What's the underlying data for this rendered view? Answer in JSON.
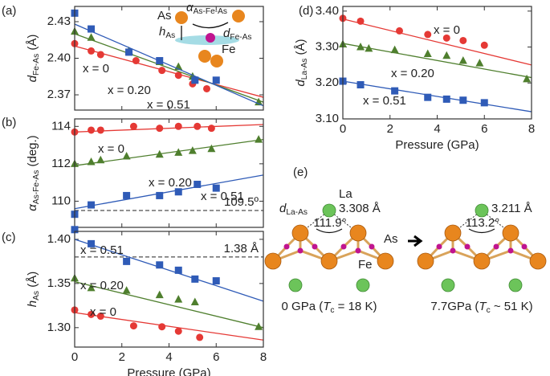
{
  "chart_data": [
    {
      "type": "scatter",
      "panel": "(a)",
      "ylabel": {
        "symbol": "d",
        "sub": "Fe-As",
        "unit": " (Å)"
      },
      "xlim": [
        0,
        8
      ],
      "xticks": [
        0,
        2,
        4,
        6,
        8
      ],
      "ylim": [
        2.3575,
        2.4425
      ],
      "yticks": [
        2.37,
        {
          "value": 2.4,
          "label": "2.40"
        },
        2.43
      ],
      "series": [
        {
          "name": "x = 0",
          "color": "#e53935",
          "marker": "circle",
          "x": [
            0,
            0.7,
            1.1,
            2.6,
            3.7,
            4.4,
            5.0,
            5.6
          ],
          "values": [
            2.412,
            2.406,
            2.403,
            2.398,
            2.39,
            2.386,
            2.379,
            2.375
          ],
          "fit": {
            "x": [
              0,
              8
            ],
            "values": [
              2.41,
              2.368
            ]
          }
        },
        {
          "name": "x = 0.20",
          "color": "#4f7f2e",
          "marker": "triangle",
          "x": [
            0,
            0.7,
            2.3,
            3.6,
            4.4,
            5.0,
            7.8
          ],
          "values": [
            2.422,
            2.417,
            2.406,
            2.397,
            2.393,
            2.385,
            2.364
          ],
          "fit": {
            "x": [
              0,
              8
            ],
            "values": [
              2.42,
              2.364
            ]
          }
        },
        {
          "name": "x = 0.51",
          "color": "#2f5bb7",
          "marker": "square",
          "x": [
            0,
            0.7,
            2.3,
            3.6,
            5.1,
            6.0
          ],
          "values": [
            2.437,
            2.424,
            2.405,
            2.398,
            2.382,
            2.382
          ],
          "fit": {
            "x": [
              0,
              8
            ],
            "values": [
              2.428,
              2.361
            ]
          }
        }
      ],
      "inset": {
        "as": "As",
        "alpha": {
          "symbol": "α",
          "sub": "As-Fe-As"
        },
        "h": {
          "symbol": "h",
          "sub": "As"
        },
        "d": {
          "symbol": "d",
          "sub": "Fe-As"
        },
        "fe": "Fe"
      }
    },
    {
      "type": "scatter",
      "panel": "(b)",
      "ylabel": {
        "symbol": "α",
        "sub": "As-Fe-As",
        "unit": " (deg.)"
      },
      "xlim": [
        0,
        8
      ],
      "xticks": [
        0,
        2,
        4,
        6,
        8
      ],
      "ylim": [
        108.6,
        114.4
      ],
      "yticks": [
        110,
        112,
        114
      ],
      "reference": {
        "value": 109.5,
        "label": "109.5º"
      },
      "series": [
        {
          "name": "x = 0",
          "color": "#e53935",
          "marker": "circle",
          "x": [
            0,
            0.7,
            1.1,
            2.5,
            3.6,
            4.4,
            5.2,
            5.8
          ],
          "values": [
            113.7,
            113.8,
            113.8,
            114.0,
            113.9,
            114.0,
            114.0,
            113.9
          ],
          "fit": {
            "x": [
              0,
              8
            ],
            "values": [
              113.7,
              114.1
            ]
          }
        },
        {
          "name": "x = 0.20",
          "color": "#4f7f2e",
          "marker": "triangle",
          "x": [
            0,
            0.7,
            1.1,
            2.2,
            3.6,
            4.4,
            5.0,
            5.8,
            7.8
          ],
          "values": [
            112.0,
            112.1,
            112.2,
            112.4,
            112.5,
            112.6,
            112.7,
            112.8,
            113.3
          ],
          "fit": {
            "x": [
              0,
              8
            ],
            "values": [
              111.9,
              113.3
            ]
          }
        },
        {
          "name": "x = 0.51",
          "color": "#2f5bb7",
          "marker": "square",
          "x": [
            0,
            0.7,
            2.2,
            3.6,
            4.4,
            5.2,
            6.0
          ],
          "values": [
            109.3,
            109.8,
            110.3,
            110.3,
            110.5,
            110.9,
            110.7
          ],
          "fit": {
            "x": [
              0,
              8
            ],
            "values": [
              109.6,
              111.4
            ]
          }
        }
      ]
    },
    {
      "type": "scatter",
      "panel": "(c)",
      "ylabel": {
        "symbol": "h",
        "sub": "As",
        "unit": " (Å)"
      },
      "xlabel": "Pressure (GPa)",
      "xlim": [
        0,
        8
      ],
      "xticks": [
        0,
        2,
        4,
        6,
        8
      ],
      "ylim": [
        1.278,
        1.409
      ],
      "yticks": [
        {
          "value": 1.3,
          "label": "1.30"
        },
        1.35,
        {
          "value": 1.4,
          "label": "1.40"
        }
      ],
      "reference": {
        "value": 1.38,
        "label": "1.38 Å"
      },
      "series": [
        {
          "name": "x = 0",
          "color": "#e53935",
          "marker": "circle",
          "x": [
            0,
            0.7,
            1.1,
            2.5,
            3.7,
            4.4,
            5.3
          ],
          "values": [
            1.32,
            1.315,
            1.313,
            1.302,
            1.301,
            1.296,
            1.289
          ],
          "fit": {
            "x": [
              0,
              8
            ],
            "values": [
              1.317,
              1.286
            ]
          }
        },
        {
          "name": "x = 0.20",
          "color": "#4f7f2e",
          "marker": "triangle",
          "x": [
            0,
            0.7,
            2.2,
            3.6,
            4.4,
            5.1,
            7.8
          ],
          "values": [
            1.356,
            1.345,
            1.342,
            1.337,
            1.332,
            1.329,
            1.301
          ],
          "fit": {
            "x": [
              0,
              8
            ],
            "values": [
              1.352,
              1.3
            ]
          }
        },
        {
          "name": "x = 0.51",
          "color": "#2f5bb7",
          "marker": "square",
          "x": [
            0,
            0.7,
            2.2,
            3.6,
            4.4,
            5.1,
            6.0
          ],
          "values": [
            1.411,
            1.395,
            1.375,
            1.371,
            1.365,
            1.355,
            1.353
          ],
          "fit": {
            "x": [
              0,
              8
            ],
            "values": [
              1.4,
              1.33
            ]
          }
        }
      ]
    },
    {
      "type": "scatter",
      "panel": "(d)",
      "ylabel": {
        "symbol": "d",
        "sub": "La-As",
        "unit": " (Å)"
      },
      "xlabel": "Pressure (GPa)",
      "xlim": [
        0,
        8
      ],
      "xticks": [
        0,
        2,
        4,
        6,
        8
      ],
      "ylim": [
        3.1,
        3.413
      ],
      "yticks": [
        {
          "value": 3.1,
          "label": "3.10"
        },
        {
          "value": 3.2,
          "label": "3.20"
        },
        {
          "value": 3.3,
          "label": "3.30"
        },
        {
          "value": 3.4,
          "label": "3.40"
        }
      ],
      "series": [
        {
          "name": "x = 0",
          "color": "#e53935",
          "marker": "circle",
          "x": [
            0,
            0.75,
            2.4,
            3.6,
            4.4,
            5.1,
            6.0
          ],
          "values": [
            3.38,
            3.372,
            3.345,
            3.335,
            3.325,
            3.318,
            3.305
          ],
          "fit": {
            "x": [
              0,
              8
            ],
            "values": [
              3.378,
              3.25
            ]
          }
        },
        {
          "name": "x = 0.20",
          "color": "#4f7f2e",
          "marker": "triangle",
          "x": [
            0,
            0.75,
            1.1,
            2.2,
            3.6,
            4.4,
            5.1,
            5.8,
            7.8
          ],
          "values": [
            3.308,
            3.3,
            3.296,
            3.292,
            3.281,
            3.276,
            3.262,
            3.255,
            3.211
          ],
          "fit": {
            "x": [
              0,
              8
            ],
            "values": [
              3.31,
              3.215
            ]
          }
        },
        {
          "name": "x = 0.51",
          "color": "#2f5bb7",
          "marker": "square",
          "x": [
            0,
            0.75,
            2.2,
            3.6,
            4.4,
            5.1,
            6.0
          ],
          "values": [
            3.205,
            3.195,
            3.178,
            3.16,
            3.155,
            3.152,
            3.145
          ],
          "fit": {
            "x": [
              0,
              8
            ],
            "values": [
              3.205,
              3.12
            ]
          }
        }
      ]
    }
  ],
  "diagram": {
    "panel": "(e)",
    "structures": [
      {
        "d_label": {
          "symbol": "d",
          "sub": "La-As"
        },
        "la": "La",
        "distance": "3.308 Å",
        "angle": "111.9°",
        "as": "As",
        "fe": "Fe",
        "caption": {
          "pre": "0 GPa (",
          "symbol": "T",
          "sub": "c",
          "post": " = 18 K)"
        }
      },
      {
        "distance": "3.211 Å",
        "angle": "113.2°",
        "caption": {
          "pre": "7.7GPa (",
          "symbol": "T",
          "sub": "c",
          "post": " ~ 51 K)"
        }
      }
    ]
  }
}
